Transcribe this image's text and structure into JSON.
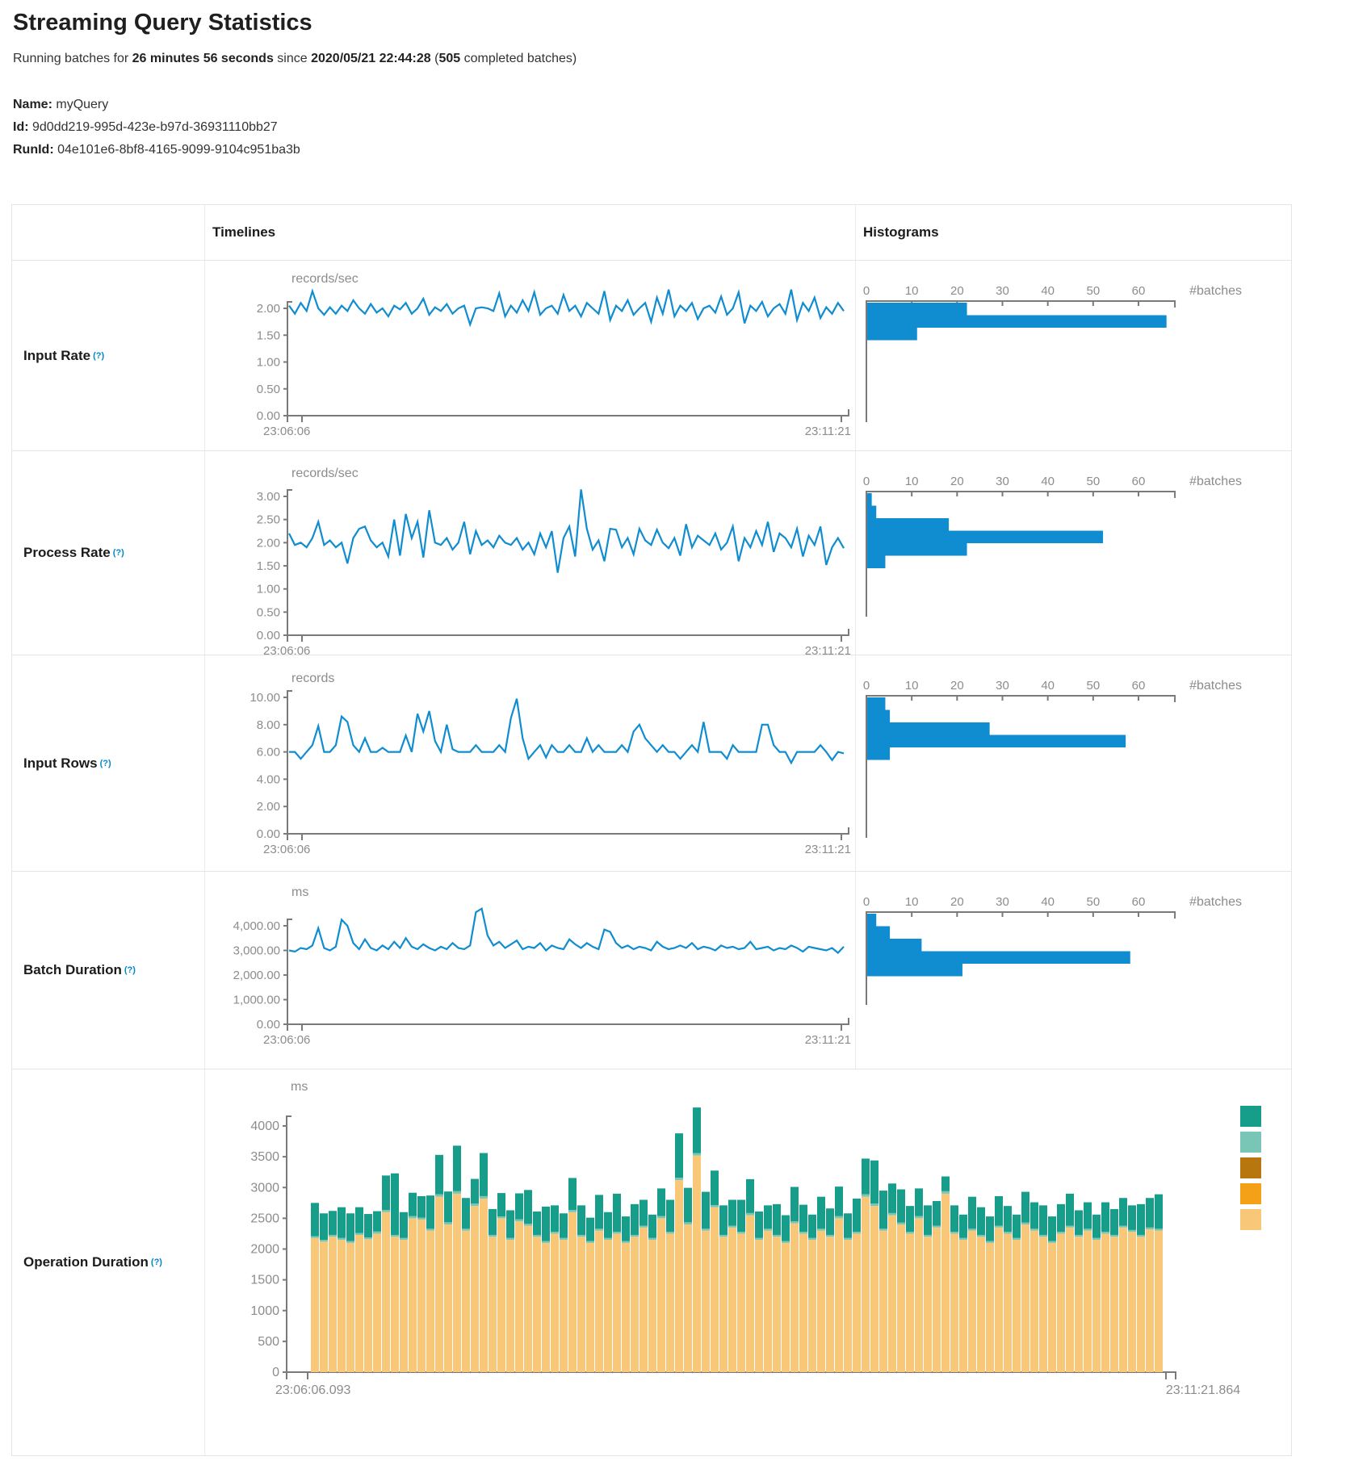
{
  "page": {
    "title": "Streaming Query Statistics",
    "subtitle": {
      "part1": "Running batches for ",
      "duration": "26 minutes 56 seconds",
      "part2": " since ",
      "start_time": "2020/05/21 22:44:28",
      "part3": " (",
      "completed_count": "505",
      "part4": " completed batches)"
    },
    "query": {
      "name_label": "Name:",
      "name_value": "myQuery",
      "id_label": "Id:",
      "id_value": "9d0dd219-995d-423e-b97d-36931110bb27",
      "runid_label": "RunId:",
      "runid_value": "04e101e6-8bf8-4165-9099-9104c951ba3b"
    }
  },
  "table": {
    "col_timelines": "Timelines",
    "col_histograms": "Histograms",
    "help_marker": "(?)",
    "rows": [
      {
        "label": "Input Rate"
      },
      {
        "label": "Process Rate"
      },
      {
        "label": "Input Rows"
      },
      {
        "label": "Batch Duration"
      },
      {
        "label": "Operation Duration"
      }
    ]
  },
  "colors": {
    "blue": "#0f8dd0",
    "teal": "#179e8b",
    "lightteal": "#79c6b6",
    "brown": "#b8770e",
    "orange": "#f5a118",
    "tan": "#f8c878",
    "axis": "#7a7a7a",
    "gray_text": "#8c8c8c"
  },
  "chart_data": [
    {
      "id": "tl0",
      "type": "line",
      "unit": "records/sec",
      "x_start": "23:06:06",
      "x_end": "23:11:21",
      "ytick_labels": [
        "2.00",
        "1.50",
        "1.00",
        "0.50",
        "0.00"
      ],
      "ytick_values": [
        2.0,
        1.5,
        1.0,
        0.5,
        0.0
      ],
      "ylim": [
        0,
        2.4
      ],
      "values": [
        2.05,
        1.9,
        2.1,
        1.95,
        2.32,
        2.0,
        1.88,
        2.02,
        1.9,
        2.05,
        1.95,
        2.15,
        2.0,
        1.9,
        2.08,
        1.92,
        2.0,
        1.85,
        2.05,
        1.98,
        2.1,
        1.9,
        2.0,
        2.18,
        1.88,
        2.02,
        1.95,
        2.08,
        1.9,
        2.0,
        2.05,
        1.7,
        2.0,
        2.02,
        2.0,
        1.95,
        2.28,
        1.85,
        2.05,
        1.92,
        2.15,
        1.95,
        2.3,
        1.88,
        2.0,
        2.05,
        1.9,
        2.25,
        1.95,
        2.05,
        1.85,
        2.1,
        2.0,
        1.9,
        2.32,
        1.78,
        2.05,
        1.95,
        2.15,
        1.88,
        2.0,
        2.1,
        1.75,
        2.2,
        1.9,
        2.35,
        1.85,
        2.05,
        1.95,
        2.1,
        1.8,
        2.0,
        2.05,
        1.92,
        2.22,
        1.88,
        2.0,
        2.3,
        1.72,
        2.05,
        1.95,
        2.12,
        1.85,
        2.0,
        2.08,
        1.9,
        2.35,
        1.78,
        2.1,
        1.95,
        2.2,
        1.82,
        2.02,
        1.9,
        2.1,
        1.95
      ]
    },
    {
      "id": "h0",
      "type": "hbar",
      "xticks": [
        0,
        10,
        20,
        30,
        40,
        50,
        60
      ],
      "xlim": [
        0,
        65
      ],
      "axis_label": "#batches",
      "values": [
        22,
        66,
        11
      ]
    },
    {
      "id": "tl1",
      "type": "line",
      "unit": "records/sec",
      "x_start": "23:06:06",
      "x_end": "23:11:21",
      "ytick_labels": [
        "3.00",
        "2.50",
        "2.00",
        "1.50",
        "1.00",
        "0.50",
        "0.00"
      ],
      "ytick_values": [
        3.0,
        2.5,
        2.0,
        1.5,
        1.0,
        0.5,
        0.0
      ],
      "ylim": [
        0,
        3.2
      ],
      "values": [
        2.2,
        1.95,
        2.0,
        1.9,
        2.1,
        2.45,
        1.95,
        2.05,
        1.9,
        2.0,
        1.55,
        2.1,
        2.3,
        2.35,
        2.05,
        1.9,
        2.0,
        1.7,
        2.5,
        1.72,
        2.62,
        2.1,
        2.45,
        1.68,
        2.7,
        2.0,
        1.95,
        2.1,
        1.85,
        2.0,
        2.45,
        1.75,
        2.25,
        1.95,
        2.05,
        1.9,
        2.15,
        2.0,
        1.95,
        2.1,
        1.85,
        2.0,
        1.75,
        2.2,
        1.9,
        2.25,
        1.35,
        2.1,
        2.35,
        1.7,
        3.15,
        2.3,
        1.85,
        2.05,
        1.6,
        2.3,
        2.28,
        1.9,
        2.1,
        1.75,
        2.3,
        2.05,
        1.95,
        2.28,
        2.0,
        1.88,
        2.1,
        1.72,
        2.4,
        1.9,
        2.15,
        2.05,
        1.95,
        2.2,
        1.85,
        2.0,
        2.35,
        1.6,
        2.1,
        1.9,
        2.25,
        1.95,
        2.45,
        1.8,
        2.2,
        2.1,
        1.9,
        2.3,
        1.7,
        2.15,
        1.95,
        2.35,
        1.52,
        1.9,
        2.1,
        1.88
      ]
    },
    {
      "id": "h1",
      "type": "hbar",
      "xticks": [
        0,
        10,
        20,
        30,
        40,
        50,
        60
      ],
      "xlim": [
        0,
        65
      ],
      "axis_label": "#batches",
      "values": [
        1,
        2,
        18,
        52,
        22,
        4
      ]
    },
    {
      "id": "tl2",
      "type": "line",
      "unit": "records",
      "x_start": "23:06:06",
      "x_end": "23:11:21",
      "ytick_labels": [
        "10.00",
        "8.00",
        "6.00",
        "4.00",
        "2.00",
        "0.00"
      ],
      "ytick_values": [
        10,
        8,
        6,
        4,
        2,
        0
      ],
      "ylim": [
        0,
        10.4
      ],
      "values": [
        6,
        6,
        5.5,
        6,
        6.5,
        7.9,
        6,
        6,
        6.5,
        8.6,
        8.2,
        6.5,
        6,
        7,
        6,
        6,
        6.3,
        6,
        6,
        6,
        7.2,
        6,
        8.8,
        7.5,
        9,
        6.8,
        6,
        8,
        6.2,
        6,
        6,
        6,
        6.5,
        6,
        6,
        6,
        6.5,
        6,
        8.5,
        9.9,
        7,
        5.5,
        6,
        6.5,
        5.6,
        6.5,
        6,
        6,
        6.5,
        6,
        6,
        7,
        6,
        6.5,
        6,
        6,
        6,
        6.5,
        6,
        7.5,
        8,
        7,
        6.5,
        6,
        6.5,
        6,
        6,
        5.5,
        6,
        6.5,
        6,
        8.2,
        6,
        6,
        6,
        5.5,
        6.5,
        6,
        6,
        6,
        6,
        8,
        8,
        6.5,
        6,
        6,
        5.2,
        6,
        6,
        6,
        6,
        6.5,
        6,
        5.4,
        6,
        5.9
      ]
    },
    {
      "id": "h2",
      "type": "hbar",
      "xticks": [
        0,
        10,
        20,
        30,
        40,
        50,
        60
      ],
      "xlim": [
        0,
        65
      ],
      "axis_label": "#batches",
      "values": [
        4,
        5,
        27,
        57,
        5
      ]
    },
    {
      "id": "tl3",
      "type": "line",
      "unit": "ms",
      "x_start": "23:06:06",
      "x_end": "23:11:21",
      "ytick_labels": [
        "4,000.00",
        "3,000.00",
        "2,000.00",
        "1,000.00",
        "0.00"
      ],
      "ytick_values": [
        4000,
        3000,
        2000,
        1000,
        0
      ],
      "ylim": [
        0,
        4900
      ],
      "values": [
        3000,
        2950,
        3100,
        3050,
        3200,
        3900,
        3100,
        3000,
        3150,
        4250,
        4000,
        3300,
        3050,
        3450,
        3100,
        3000,
        3200,
        3050,
        3350,
        3100,
        3500,
        3150,
        3050,
        3250,
        3100,
        3000,
        3150,
        3050,
        3300,
        3100,
        3050,
        3200,
        4550,
        4700,
        3600,
        3200,
        3350,
        3100,
        3250,
        3400,
        3050,
        3150,
        3100,
        3300,
        3000,
        3200,
        3100,
        3050,
        3450,
        3250,
        3100,
        3300,
        3150,
        3050,
        3850,
        3750,
        3300,
        3100,
        3200,
        3050,
        3150,
        3100,
        3000,
        3350,
        3150,
        3050,
        3100,
        3200,
        3100,
        3300,
        3050,
        3150,
        3100,
        3000,
        3200,
        3100,
        3150,
        3050,
        3100,
        3350,
        3050,
        3100,
        3150,
        3000,
        3100,
        3050,
        3200,
        3100,
        2950,
        3150,
        3100,
        3050,
        3000,
        3100,
        2900,
        3150
      ]
    },
    {
      "id": "h3",
      "type": "hbar",
      "xticks": [
        0,
        10,
        20,
        30,
        40,
        50,
        60
      ],
      "xlim": [
        0,
        65
      ],
      "axis_label": "#batches",
      "values": [
        2,
        5,
        12,
        58,
        21
      ]
    },
    {
      "id": "op",
      "type": "stacked_bar",
      "unit": "ms",
      "x_start": "23:06:06.093",
      "x_end": "23:11:21.864",
      "ytick_labels": [
        "4000",
        "3500",
        "3000",
        "2500",
        "2000",
        "1500",
        "1000",
        "500",
        "0"
      ],
      "ytick_values": [
        4000,
        3500,
        3000,
        2500,
        2000,
        1500,
        1000,
        500,
        0
      ],
      "ylim": [
        0,
        4400
      ],
      "series_colors": [
        "tan",
        "lightteal",
        "teal"
      ],
      "legend_colors": [
        "teal",
        "lightteal",
        "brown",
        "orange",
        "tan"
      ],
      "bars": [
        [
          2180,
          30,
          540
        ],
        [
          2120,
          30,
          430
        ],
        [
          2200,
          30,
          390
        ],
        [
          2150,
          30,
          500
        ],
        [
          2100,
          30,
          450
        ],
        [
          2230,
          30,
          420
        ],
        [
          2160,
          30,
          380
        ],
        [
          2250,
          35,
          330
        ],
        [
          2600,
          35,
          560
        ],
        [
          2200,
          30,
          1000
        ],
        [
          2150,
          30,
          420
        ],
        [
          2500,
          35,
          380
        ],
        [
          2480,
          30,
          350
        ],
        [
          2300,
          30,
          540
        ],
        [
          2850,
          40,
          640
        ],
        [
          2400,
          35,
          500
        ],
        [
          2900,
          40,
          740
        ],
        [
          2300,
          30,
          500
        ],
        [
          2700,
          40,
          400
        ],
        [
          2820,
          40,
          700
        ],
        [
          2200,
          30,
          420
        ],
        [
          2500,
          30,
          380
        ],
        [
          2150,
          30,
          450
        ],
        [
          2450,
          35,
          420
        ],
        [
          2380,
          30,
          550
        ],
        [
          2200,
          30,
          380
        ],
        [
          2100,
          30,
          560
        ],
        [
          2250,
          30,
          430
        ],
        [
          2150,
          30,
          400
        ],
        [
          2600,
          35,
          520
        ],
        [
          2200,
          30,
          480
        ],
        [
          2100,
          30,
          380
        ],
        [
          2300,
          30,
          550
        ],
        [
          2150,
          30,
          420
        ],
        [
          2250,
          30,
          620
        ],
        [
          2100,
          30,
          400
        ],
        [
          2200,
          30,
          500
        ],
        [
          2350,
          30,
          420
        ],
        [
          2150,
          30,
          380
        ],
        [
          2500,
          35,
          450
        ],
        [
          2250,
          30,
          520
        ],
        [
          3120,
          40,
          720
        ],
        [
          2400,
          35,
          560
        ],
        [
          3520,
          40,
          740
        ],
        [
          2300,
          30,
          600
        ],
        [
          2680,
          35,
          560
        ],
        [
          2200,
          30,
          480
        ],
        [
          2350,
          30,
          420
        ],
        [
          2250,
          30,
          520
        ],
        [
          2550,
          35,
          550
        ],
        [
          2150,
          30,
          430
        ],
        [
          2300,
          30,
          380
        ],
        [
          2200,
          30,
          500
        ],
        [
          2100,
          30,
          420
        ],
        [
          2420,
          30,
          560
        ],
        [
          2250,
          30,
          440
        ],
        [
          2150,
          30,
          380
        ],
        [
          2300,
          30,
          520
        ],
        [
          2200,
          30,
          430
        ],
        [
          2500,
          35,
          480
        ],
        [
          2150,
          30,
          400
        ],
        [
          2250,
          30,
          540
        ],
        [
          2850,
          40,
          580
        ],
        [
          2700,
          40,
          700
        ],
        [
          2300,
          30,
          620
        ],
        [
          2550,
          35,
          480
        ],
        [
          2400,
          30,
          540
        ],
        [
          2250,
          30,
          420
        ],
        [
          2500,
          35,
          450
        ],
        [
          2200,
          30,
          480
        ],
        [
          2350,
          30,
          400
        ],
        [
          2900,
          40,
          240
        ],
        [
          2250,
          30,
          430
        ],
        [
          2150,
          30,
          380
        ],
        [
          2300,
          30,
          520
        ],
        [
          2200,
          30,
          450
        ],
        [
          2100,
          30,
          400
        ],
        [
          2350,
          30,
          480
        ],
        [
          2250,
          30,
          420
        ],
        [
          2150,
          30,
          380
        ],
        [
          2400,
          30,
          500
        ],
        [
          2300,
          30,
          430
        ],
        [
          2200,
          30,
          480
        ],
        [
          2100,
          30,
          400
        ],
        [
          2250,
          30,
          450
        ],
        [
          2350,
          30,
          520
        ],
        [
          2200,
          30,
          400
        ],
        [
          2300,
          30,
          430
        ],
        [
          2150,
          30,
          380
        ],
        [
          2250,
          30,
          480
        ],
        [
          2200,
          30,
          420
        ],
        [
          2350,
          30,
          450
        ],
        [
          2280,
          30,
          400
        ],
        [
          2200,
          30,
          500
        ],
        [
          2320,
          30,
          480
        ],
        [
          2300,
          30,
          560
        ]
      ]
    }
  ]
}
